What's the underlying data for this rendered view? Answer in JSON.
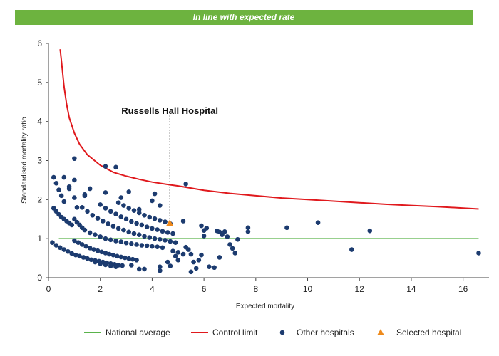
{
  "banner": {
    "text": "In line with expected rate",
    "color": "#6db33f"
  },
  "chart_data": {
    "type": "scatter",
    "title": "",
    "xlabel": "Expected mortality",
    "ylabel": "Standardised mortality ratio",
    "xlim": [
      0,
      17
    ],
    "ylim": [
      0,
      6
    ],
    "xticks": [
      "0",
      "2",
      "4",
      "6",
      "8",
      "10",
      "12",
      "14",
      "16"
    ],
    "yticks": [
      "0",
      "1",
      "2",
      "3",
      "4",
      "5",
      "6"
    ],
    "annotation": {
      "text": "Russells Hall Hospital",
      "x": 4.68,
      "y": 1.4
    },
    "national_average": {
      "name": "National average",
      "y": 1.0,
      "x_range": [
        0.4,
        16.6
      ],
      "color": "#5ab34b"
    },
    "control_limit": {
      "name": "Control limit",
      "color": "#e0191d",
      "points": [
        [
          0.45,
          5.85
        ],
        [
          0.5,
          5.55
        ],
        [
          0.6,
          4.9
        ],
        [
          0.7,
          4.45
        ],
        [
          0.8,
          4.1
        ],
        [
          1.0,
          3.7
        ],
        [
          1.2,
          3.42
        ],
        [
          1.5,
          3.15
        ],
        [
          2.0,
          2.88
        ],
        [
          2.5,
          2.7
        ],
        [
          3.0,
          2.6
        ],
        [
          3.5,
          2.52
        ],
        [
          4.0,
          2.45
        ],
        [
          4.68,
          2.38
        ],
        [
          5.0,
          2.35
        ],
        [
          6.0,
          2.24
        ],
        [
          7.0,
          2.16
        ],
        [
          8.0,
          2.1
        ],
        [
          9.0,
          2.04
        ],
        [
          10.0,
          2.0
        ],
        [
          11.0,
          1.96
        ],
        [
          12.0,
          1.92
        ],
        [
          13.0,
          1.88
        ],
        [
          14.0,
          1.85
        ],
        [
          15.0,
          1.82
        ],
        [
          16.6,
          1.76
        ]
      ]
    },
    "selected": {
      "name": "Selected hospital",
      "color": "#ee8a1c",
      "points": [
        [
          4.68,
          1.4
        ]
      ]
    },
    "others": {
      "name": "Other hospitals",
      "color": "#1c3b6f",
      "points": [
        [
          0.2,
          2.57
        ],
        [
          0.3,
          2.42
        ],
        [
          0.4,
          2.25
        ],
        [
          0.5,
          2.1
        ],
        [
          0.6,
          1.95
        ],
        [
          0.6,
          2.57
        ],
        [
          0.8,
          2.33
        ],
        [
          0.8,
          2.28
        ],
        [
          1.0,
          3.05
        ],
        [
          1.0,
          2.5
        ],
        [
          1.0,
          2.05
        ],
        [
          1.1,
          1.8
        ],
        [
          1.4,
          2.1
        ],
        [
          1.4,
          2.13
        ],
        [
          1.6,
          2.28
        ],
        [
          2.2,
          2.85
        ],
        [
          2.6,
          2.83
        ],
        [
          2.2,
          2.18
        ],
        [
          2.8,
          2.05
        ],
        [
          3.1,
          2.2
        ],
        [
          4.1,
          2.15
        ],
        [
          4.0,
          1.97
        ],
        [
          4.3,
          1.85
        ],
        [
          3.5,
          1.75
        ],
        [
          5.3,
          2.4
        ],
        [
          0.2,
          1.78
        ],
        [
          0.3,
          1.7
        ],
        [
          0.4,
          1.62
        ],
        [
          0.5,
          1.55
        ],
        [
          0.6,
          1.5
        ],
        [
          0.7,
          1.45
        ],
        [
          0.8,
          1.4
        ],
        [
          0.9,
          1.35
        ],
        [
          1.0,
          1.5
        ],
        [
          1.1,
          1.42
        ],
        [
          1.2,
          1.35
        ],
        [
          1.3,
          1.28
        ],
        [
          1.4,
          1.22
        ],
        [
          1.6,
          1.15
        ],
        [
          1.8,
          1.1
        ],
        [
          2.0,
          1.05
        ],
        [
          2.2,
          1.0
        ],
        [
          2.4,
          0.97
        ],
        [
          2.6,
          0.94
        ],
        [
          2.8,
          0.92
        ],
        [
          3.0,
          0.89
        ],
        [
          3.2,
          0.87
        ],
        [
          3.4,
          0.85
        ],
        [
          3.6,
          0.83
        ],
        [
          3.8,
          0.82
        ],
        [
          4.0,
          0.8
        ],
        [
          4.2,
          0.79
        ],
        [
          4.4,
          0.77
        ],
        [
          1.3,
          1.8
        ],
        [
          1.5,
          1.7
        ],
        [
          1.7,
          1.6
        ],
        [
          1.9,
          1.52
        ],
        [
          2.1,
          1.45
        ],
        [
          2.3,
          1.38
        ],
        [
          2.5,
          1.32
        ],
        [
          2.7,
          1.26
        ],
        [
          2.9,
          1.22
        ],
        [
          3.1,
          1.17
        ],
        [
          3.3,
          1.13
        ],
        [
          3.5,
          1.1
        ],
        [
          3.7,
          1.06
        ],
        [
          3.9,
          1.03
        ],
        [
          4.1,
          1.0
        ],
        [
          4.3,
          0.98
        ],
        [
          4.5,
          0.96
        ],
        [
          4.7,
          0.93
        ],
        [
          4.9,
          0.9
        ],
        [
          2.0,
          1.87
        ],
        [
          2.2,
          1.78
        ],
        [
          2.4,
          1.7
        ],
        [
          2.6,
          1.63
        ],
        [
          2.8,
          1.56
        ],
        [
          3.0,
          1.5
        ],
        [
          3.2,
          1.44
        ],
        [
          3.4,
          1.39
        ],
        [
          3.6,
          1.35
        ],
        [
          3.8,
          1.3
        ],
        [
          4.0,
          1.26
        ],
        [
          4.2,
          1.23
        ],
        [
          4.4,
          1.19
        ],
        [
          4.6,
          1.16
        ],
        [
          4.8,
          1.13
        ],
        [
          2.7,
          1.92
        ],
        [
          2.9,
          1.85
        ],
        [
          3.1,
          1.78
        ],
        [
          3.3,
          1.72
        ],
        [
          3.5,
          1.66
        ],
        [
          3.7,
          1.6
        ],
        [
          3.9,
          1.55
        ],
        [
          4.1,
          1.51
        ],
        [
          4.3,
          1.47
        ],
        [
          4.5,
          1.43
        ],
        [
          4.7,
          1.38
        ],
        [
          0.15,
          0.9
        ],
        [
          0.3,
          0.83
        ],
        [
          0.45,
          0.77
        ],
        [
          0.6,
          0.72
        ],
        [
          0.75,
          0.67
        ],
        [
          0.9,
          0.62
        ],
        [
          1.05,
          0.58
        ],
        [
          1.2,
          0.55
        ],
        [
          1.35,
          0.52
        ],
        [
          1.5,
          0.49
        ],
        [
          1.65,
          0.46
        ],
        [
          1.8,
          0.44
        ],
        [
          1.95,
          0.42
        ],
        [
          2.1,
          0.4
        ],
        [
          2.25,
          0.38
        ],
        [
          2.4,
          0.36
        ],
        [
          2.55,
          0.34
        ],
        [
          2.7,
          0.32
        ],
        [
          2.85,
          0.31
        ],
        [
          1.0,
          0.95
        ],
        [
          1.15,
          0.9
        ],
        [
          1.3,
          0.85
        ],
        [
          1.45,
          0.8
        ],
        [
          1.6,
          0.76
        ],
        [
          1.75,
          0.72
        ],
        [
          1.9,
          0.69
        ],
        [
          2.05,
          0.66
        ],
        [
          2.2,
          0.63
        ],
        [
          2.35,
          0.6
        ],
        [
          2.5,
          0.58
        ],
        [
          2.65,
          0.55
        ],
        [
          2.8,
          0.53
        ],
        [
          2.95,
          0.51
        ],
        [
          3.1,
          0.49
        ],
        [
          3.25,
          0.47
        ],
        [
          3.4,
          0.45
        ],
        [
          1.8,
          0.4
        ],
        [
          2.0,
          0.36
        ],
        [
          2.2,
          0.33
        ],
        [
          2.4,
          0.3
        ],
        [
          2.6,
          0.28
        ],
        [
          3.2,
          0.32
        ],
        [
          3.5,
          0.22
        ],
        [
          3.7,
          0.22
        ],
        [
          4.3,
          0.18
        ],
        [
          4.6,
          0.4
        ],
        [
          4.9,
          0.55
        ],
        [
          5.2,
          0.6
        ],
        [
          4.3,
          0.28
        ],
        [
          4.7,
          0.3
        ],
        [
          5.0,
          0.45
        ],
        [
          4.8,
          0.68
        ],
        [
          5.0,
          0.65
        ],
        [
          5.3,
          0.78
        ],
        [
          5.4,
          0.72
        ],
        [
          5.5,
          0.6
        ],
        [
          5.6,
          0.4
        ],
        [
          5.5,
          0.15
        ],
        [
          5.7,
          0.24
        ],
        [
          5.8,
          0.45
        ],
        [
          5.9,
          0.58
        ],
        [
          5.2,
          1.45
        ],
        [
          5.9,
          1.33
        ],
        [
          6.0,
          1.21
        ],
        [
          6.1,
          1.27
        ],
        [
          6.0,
          1.07
        ],
        [
          6.5,
          1.2
        ],
        [
          6.6,
          1.17
        ],
        [
          6.8,
          1.18
        ],
        [
          6.7,
          1.1
        ],
        [
          6.9,
          1.05
        ],
        [
          7.0,
          0.85
        ],
        [
          7.1,
          0.75
        ],
        [
          7.2,
          0.63
        ],
        [
          7.3,
          0.98
        ],
        [
          6.2,
          0.28
        ],
        [
          6.4,
          0.26
        ],
        [
          6.6,
          0.52
        ],
        [
          7.7,
          1.28
        ],
        [
          7.7,
          1.18
        ],
        [
          9.2,
          1.28
        ],
        [
          10.4,
          1.41
        ],
        [
          11.7,
          0.72
        ],
        [
          12.4,
          1.2
        ],
        [
          16.6,
          0.63
        ]
      ]
    }
  },
  "legend": {
    "items": [
      {
        "label": "National average",
        "symbol": "line",
        "color": "#5ab34b"
      },
      {
        "label": "Control limit",
        "symbol": "line",
        "color": "#e0191d"
      },
      {
        "label": "Other hospitals",
        "symbol": "dot",
        "color": "#1c3b6f"
      },
      {
        "label": "Selected hospital",
        "symbol": "triangle",
        "color": "#ee8a1c"
      }
    ]
  }
}
